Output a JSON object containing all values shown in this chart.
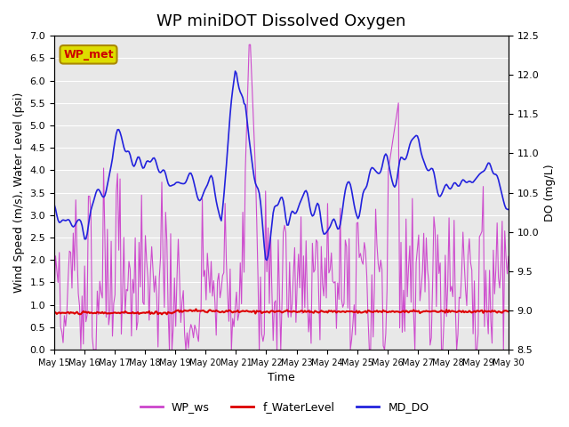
{
  "title": "WP miniDOT Dissolved Oxygen",
  "xlabel": "Time",
  "ylabel_left": "Wind Speed (m/s), Water Level (psi)",
  "ylabel_right": "DO (mg/L)",
  "ylim_left": [
    0.0,
    7.0
  ],
  "ylim_right": [
    8.5,
    12.5
  ],
  "xtick_labels": [
    "May 15",
    "May 16",
    "May 17",
    "May 18",
    "May 19",
    "May 20",
    "May 21",
    "May 22",
    "May 23",
    "May 24",
    "May 25",
    "May 26",
    "May 27",
    "May 28",
    "May 29",
    "May 30"
  ],
  "color_ws": "#CC44CC",
  "color_wl": "#DD0000",
  "color_do": "#2222DD",
  "legend_labels": [
    "WP_ws",
    "f_WaterLevel",
    "MD_DO"
  ],
  "annotation_text": "WP_met",
  "annotation_color": "#CC0000",
  "annotation_bg": "#DDDD00",
  "background_color": "#E8E8E8",
  "grid_color": "#FFFFFF",
  "title_fontsize": 13
}
